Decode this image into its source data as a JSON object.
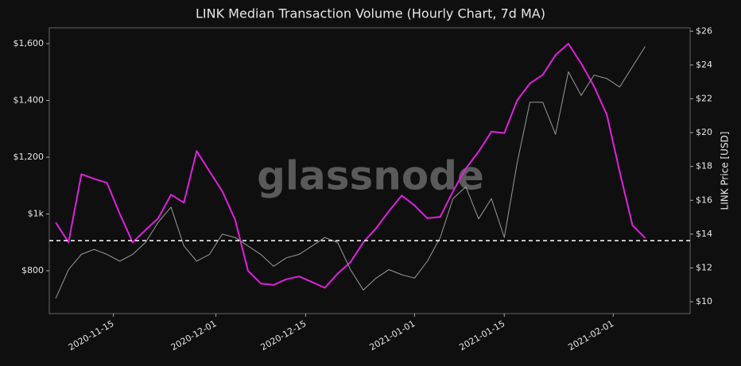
{
  "chart_data": {
    "type": "line",
    "title": "LINK Median Transaction Volume (Hourly Chart, 7d MA)",
    "y2_label": "LINK Price [USD]",
    "watermark": "glassnode",
    "x": [
      "2020-11-06",
      "2020-11-08",
      "2020-11-10",
      "2020-11-12",
      "2020-11-14",
      "2020-11-16",
      "2020-11-18",
      "2020-11-20",
      "2020-11-22",
      "2020-11-24",
      "2020-11-26",
      "2020-11-28",
      "2020-11-30",
      "2020-12-02",
      "2020-12-04",
      "2020-12-06",
      "2020-12-08",
      "2020-12-10",
      "2020-12-12",
      "2020-12-14",
      "2020-12-16",
      "2020-12-18",
      "2020-12-20",
      "2020-12-22",
      "2020-12-24",
      "2020-12-26",
      "2020-12-28",
      "2020-12-30",
      "2021-01-01",
      "2021-01-03",
      "2021-01-05",
      "2021-01-07",
      "2021-01-09",
      "2021-01-11",
      "2021-01-13",
      "2021-01-15",
      "2021-01-17",
      "2021-01-19",
      "2021-01-21",
      "2021-01-23",
      "2021-01-25",
      "2021-01-27",
      "2021-01-29",
      "2021-01-31",
      "2021-02-02",
      "2021-02-04",
      "2021-02-06"
    ],
    "series": [
      {
        "name": "Median Transaction Volume",
        "color": "#e020e0",
        "axis": "y",
        "values": [
          970,
          900,
          1140,
          1124,
          1110,
          1000,
          900,
          943,
          985,
          1068,
          1040,
          1222,
          1150,
          1080,
          980,
          800,
          755,
          750,
          770,
          780,
          760,
          740,
          790,
          830,
          900,
          950,
          1010,
          1065,
          1030,
          985,
          990,
          1080,
          1160,
          1220,
          1290,
          1285,
          1400,
          1460,
          1490,
          1560,
          1600,
          1530,
          1450,
          1350,
          1150,
          960,
          915
        ]
      },
      {
        "name": "LINK Price",
        "color": "#9a9a9a",
        "axis": "y2",
        "values": [
          10.2,
          11.9,
          12.8,
          13.1,
          12.8,
          12.4,
          12.8,
          13.5,
          14.7,
          15.6,
          13.3,
          12.4,
          12.8,
          14.0,
          13.8,
          13.3,
          12.8,
          12.1,
          12.6,
          12.8,
          13.3,
          13.8,
          13.5,
          11.9,
          10.7,
          11.4,
          11.9,
          11.6,
          11.4,
          12.4,
          13.8,
          16.1,
          16.8,
          14.9,
          16.1,
          13.8,
          18.2,
          21.8,
          21.8,
          19.9,
          23.6,
          22.2,
          23.4,
          23.2,
          22.7,
          23.9,
          25.1
        ]
      }
    ],
    "reference_line": 906,
    "xlim": [
      "2020-11-05",
      "2021-02-13"
    ],
    "xticks": [
      "2020-11-15",
      "2020-12-01",
      "2020-12-15",
      "2021-01-01",
      "2021-01-15",
      "2021-02-01"
    ],
    "ylim": [
      649,
      1656
    ],
    "yticks": [
      {
        "value": 800,
        "label": "$800"
      },
      {
        "value": 1000,
        "label": "$1k"
      },
      {
        "value": 1200,
        "label": "$1,200"
      },
      {
        "value": 1400,
        "label": "$1,400"
      },
      {
        "value": 1600,
        "label": "$1,600"
      }
    ],
    "y2lim": [
      9.3,
      26.2
    ],
    "y2ticks": [
      {
        "value": 10,
        "label": "$10"
      },
      {
        "value": 12,
        "label": "$12"
      },
      {
        "value": 14,
        "label": "$14"
      },
      {
        "value": 16,
        "label": "$16"
      },
      {
        "value": 18,
        "label": "$18"
      },
      {
        "value": 20,
        "label": "$20"
      },
      {
        "value": 22,
        "label": "$22"
      },
      {
        "value": 24,
        "label": "$24"
      },
      {
        "value": 26,
        "label": "$26"
      }
    ],
    "grid": false
  }
}
